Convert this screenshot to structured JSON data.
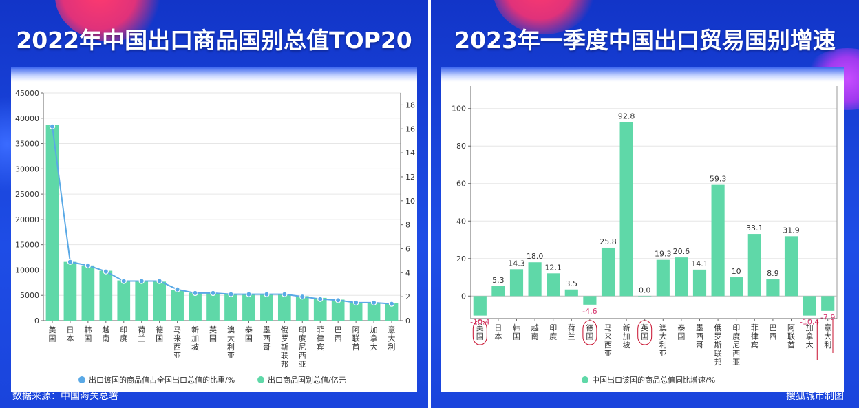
{
  "left": {
    "title": "2022年中国出口商品国别总值TOP20",
    "footer": "数据来源：中国海关总署",
    "chart_data": {
      "type": "bar",
      "categories": [
        "美国",
        "日本",
        "韩国",
        "越南",
        "印度",
        "荷兰",
        "德国",
        "马来西亚",
        "新加坡",
        "英国",
        "澳大利亚",
        "泰国",
        "墨西哥",
        "俄罗斯联邦",
        "印度尼西亚",
        "菲律宾",
        "巴西",
        "阿联酋",
        "加拿大",
        "意大利"
      ],
      "series": [
        {
          "name": "出口商品国别总值/亿元",
          "type": "bar",
          "axis": "left",
          "values": [
            38700,
            11600,
            10900,
            9850,
            7950,
            7950,
            7700,
            6100,
            5500,
            5450,
            5300,
            5250,
            5200,
            5100,
            4850,
            4500,
            4150,
            3650,
            3600,
            3450
          ]
        },
        {
          "name": "出口该国的商品值占全国出口总值的比重/%",
          "type": "line",
          "axis": "right",
          "values": [
            16.2,
            4.9,
            4.6,
            4.1,
            3.3,
            3.3,
            3.3,
            2.6,
            2.3,
            2.3,
            2.2,
            2.2,
            2.2,
            2.2,
            2.0,
            1.8,
            1.7,
            1.5,
            1.5,
            1.4
          ]
        }
      ],
      "left_axis": {
        "min": 0,
        "max": 45000,
        "ticks": [
          0,
          5000,
          10000,
          15000,
          20000,
          25000,
          30000,
          35000,
          40000,
          45000
        ]
      },
      "right_axis": {
        "min": 0,
        "max": 19,
        "ticks": [
          0,
          2,
          4,
          6,
          8,
          10,
          12,
          14,
          16,
          18
        ]
      },
      "grid": true,
      "legend_position": "bottom",
      "colors": {
        "bar": "#5fd8a8",
        "line": "#5aa9e6",
        "point_fill": "#5aa9e6",
        "point_stroke": "#ffffff"
      }
    }
  },
  "right": {
    "title": "2023年一季度中国出口贸易国别增速",
    "footer": "搜狐城市制图",
    "chart_data": {
      "type": "bar",
      "categories": [
        "美国",
        "日本",
        "韩国",
        "越南",
        "印度",
        "荷兰",
        "德国",
        "马来西亚",
        "新加坡",
        "英国",
        "澳大利亚",
        "泰国",
        "墨西哥",
        "俄罗斯联邦",
        "印度尼西亚",
        "菲律宾",
        "巴西",
        "阿联酋",
        "加拿大",
        "意大利"
      ],
      "series": [
        {
          "name": "中国出口该国的商品总值同比增速/%",
          "values": [
            -10.4,
            5.3,
            14.3,
            18.0,
            12.1,
            3.5,
            -4.6,
            25.8,
            92.8,
            0.0,
            19.3,
            20.6,
            14.1,
            59.3,
            10,
            33.1,
            8.9,
            31.9,
            -10.4,
            -7.9
          ],
          "labels": [
            "-10.4",
            "5.3",
            "14.3",
            "18.0",
            "12.1",
            "3.5",
            "-4.6",
            "25.8",
            "92.8",
            "0.0",
            "19.3",
            "20.6",
            "14.1",
            "59.3",
            "10",
            "33.1",
            "8.9",
            "31.9",
            "-10.4",
            "-7.9"
          ]
        }
      ],
      "y_axis": {
        "min": -12,
        "max": 112,
        "ticks": [
          0,
          20,
          40,
          60,
          80,
          100
        ]
      },
      "grid": true,
      "legend_position": "bottom",
      "circled_categories": [
        "美国",
        "德国",
        "英国"
      ],
      "colors": {
        "bar": "#5fd8a8",
        "negative_label": "#d6336c",
        "positive_label": "#333333",
        "annotation": "#c8102e"
      }
    }
  }
}
